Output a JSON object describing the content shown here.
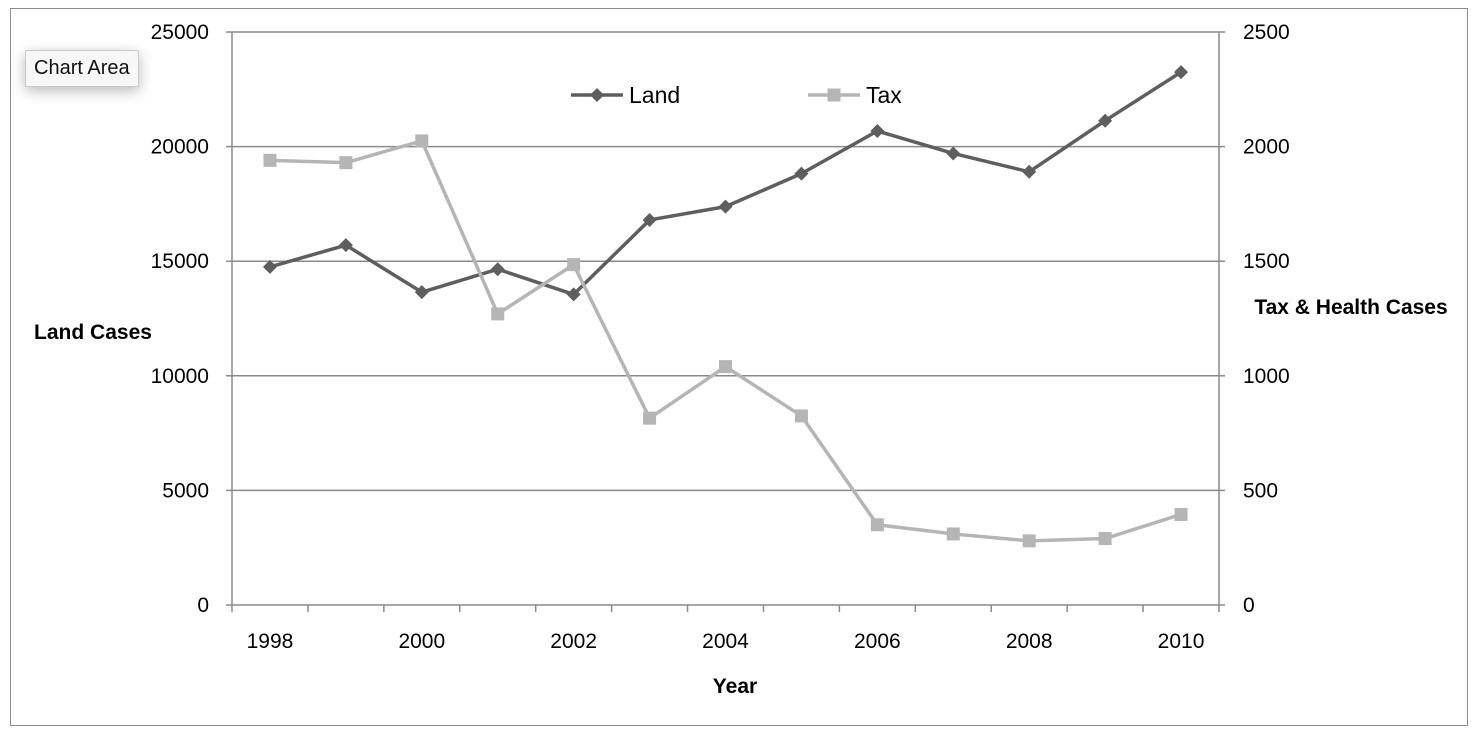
{
  "tooltip": {
    "label": "Chart Area"
  },
  "colors": {
    "land": "#5e5e5e",
    "tax": "#b5b5b5",
    "grid": "#8a8a8a",
    "axis": "#8a8a8a"
  },
  "chart_data": {
    "type": "line",
    "title": "",
    "xlabel": "Year",
    "ylabel": "Land Cases",
    "y2label": "Tax & Health Cases",
    "x": [
      1998,
      1999,
      2000,
      2001,
      2002,
      2003,
      2004,
      2005,
      2006,
      2007,
      2008,
      2009,
      2010
    ],
    "x_tick_labels": [
      "1998",
      "2000",
      "2002",
      "2004",
      "2006",
      "2008",
      "2010"
    ],
    "ylim": [
      0,
      25000
    ],
    "y_ticks": [
      "0",
      "5000",
      "10000",
      "15000",
      "20000",
      "25000"
    ],
    "y2lim": [
      0,
      2500
    ],
    "y2_ticks": [
      "0",
      "500",
      "1000",
      "1500",
      "2000",
      "2500"
    ],
    "grid": true,
    "legend_position": "top-center",
    "series": [
      {
        "name": "Land",
        "axis": "left",
        "marker": "diamond",
        "values": [
          14750,
          15700,
          13650,
          14650,
          13550,
          16800,
          17380,
          18820,
          20680,
          19700,
          18900,
          21130,
          23250
        ]
      },
      {
        "name": "Tax",
        "axis": "right",
        "marker": "square",
        "values": [
          1940,
          1930,
          2025,
          1270,
          1485,
          815,
          1040,
          825,
          350,
          310,
          280,
          290,
          395
        ]
      }
    ]
  }
}
